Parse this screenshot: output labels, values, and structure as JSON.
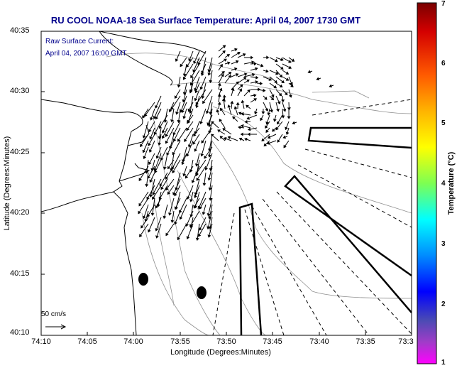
{
  "title": "RU COOL  NOAA-18  Sea Surface Temperature:  April 04, 2007 1730 GMT",
  "legend": {
    "line1": "Raw Surface Current:",
    "line2": "April 04, 2007 16:00 GMT"
  },
  "axes": {
    "xlabel": "Longitude (Degrees:Minutes)",
    "ylabel": "Latitude (Degrees:Minutes)",
    "xticks": [
      "74:10",
      "74:05",
      "74:00",
      "73:55",
      "73:50",
      "73:45",
      "73:40",
      "73:35",
      "73:3"
    ],
    "yticks": [
      "40:35",
      "40:30",
      "40:25",
      "40:20",
      "40:15",
      "40:10"
    ]
  },
  "scale_bar": {
    "label": "50 cm/s"
  },
  "colorbar": {
    "title": "Temperature (°C)",
    "ticks": [
      "7",
      "6",
      "5",
      "4",
      "3",
      "2",
      "1"
    ],
    "colors": [
      "#7a0000",
      "#d40000",
      "#ff5a00",
      "#ffb400",
      "#ffff00",
      "#7dff52",
      "#00ffff",
      "#008cff",
      "#0000ff",
      "#4b4bb4",
      "#a03cc8",
      "#ff00ff"
    ]
  }
}
